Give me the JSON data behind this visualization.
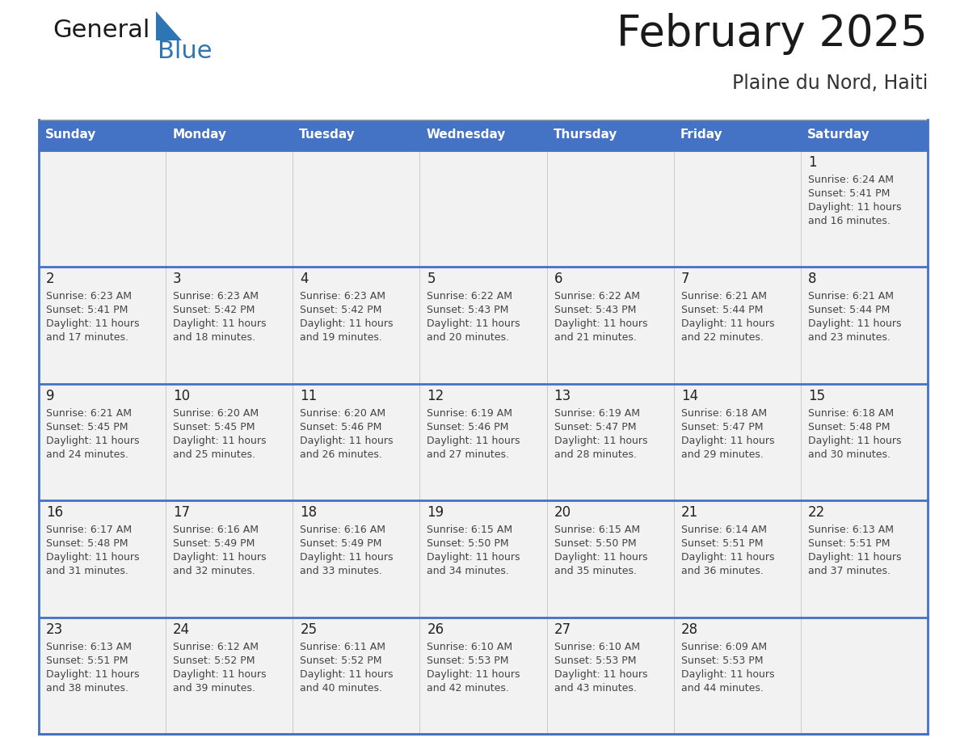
{
  "title": "February 2025",
  "subtitle": "Plaine du Nord, Haiti",
  "days_of_week": [
    "Sunday",
    "Monday",
    "Tuesday",
    "Wednesday",
    "Thursday",
    "Friday",
    "Saturday"
  ],
  "header_bg": "#4472C4",
  "header_text": "#FFFFFF",
  "cell_bg": "#F2F2F2",
  "border_color": "#4472C4",
  "cell_border_color": "#AAAAAA",
  "day_number_color": "#222222",
  "text_color": "#444444",
  "title_color": "#1a1a1a",
  "logo_dark_color": "#1a1a1a",
  "logo_blue_color": "#2E75B6",
  "calendar_data": [
    [
      null,
      null,
      null,
      null,
      null,
      null,
      {
        "day": 1,
        "sunrise": "6:24 AM",
        "sunset": "5:41 PM",
        "daylight": "11 hours",
        "daylight2": "and 16 minutes."
      }
    ],
    [
      {
        "day": 2,
        "sunrise": "6:23 AM",
        "sunset": "5:41 PM",
        "daylight": "11 hours",
        "daylight2": "and 17 minutes."
      },
      {
        "day": 3,
        "sunrise": "6:23 AM",
        "sunset": "5:42 PM",
        "daylight": "11 hours",
        "daylight2": "and 18 minutes."
      },
      {
        "day": 4,
        "sunrise": "6:23 AM",
        "sunset": "5:42 PM",
        "daylight": "11 hours",
        "daylight2": "and 19 minutes."
      },
      {
        "day": 5,
        "sunrise": "6:22 AM",
        "sunset": "5:43 PM",
        "daylight": "11 hours",
        "daylight2": "and 20 minutes."
      },
      {
        "day": 6,
        "sunrise": "6:22 AM",
        "sunset": "5:43 PM",
        "daylight": "11 hours",
        "daylight2": "and 21 minutes."
      },
      {
        "day": 7,
        "sunrise": "6:21 AM",
        "sunset": "5:44 PM",
        "daylight": "11 hours",
        "daylight2": "and 22 minutes."
      },
      {
        "day": 8,
        "sunrise": "6:21 AM",
        "sunset": "5:44 PM",
        "daylight": "11 hours",
        "daylight2": "and 23 minutes."
      }
    ],
    [
      {
        "day": 9,
        "sunrise": "6:21 AM",
        "sunset": "5:45 PM",
        "daylight": "11 hours",
        "daylight2": "and 24 minutes."
      },
      {
        "day": 10,
        "sunrise": "6:20 AM",
        "sunset": "5:45 PM",
        "daylight": "11 hours",
        "daylight2": "and 25 minutes."
      },
      {
        "day": 11,
        "sunrise": "6:20 AM",
        "sunset": "5:46 PM",
        "daylight": "11 hours",
        "daylight2": "and 26 minutes."
      },
      {
        "day": 12,
        "sunrise": "6:19 AM",
        "sunset": "5:46 PM",
        "daylight": "11 hours",
        "daylight2": "and 27 minutes."
      },
      {
        "day": 13,
        "sunrise": "6:19 AM",
        "sunset": "5:47 PM",
        "daylight": "11 hours",
        "daylight2": "and 28 minutes."
      },
      {
        "day": 14,
        "sunrise": "6:18 AM",
        "sunset": "5:47 PM",
        "daylight": "11 hours",
        "daylight2": "and 29 minutes."
      },
      {
        "day": 15,
        "sunrise": "6:18 AM",
        "sunset": "5:48 PM",
        "daylight": "11 hours",
        "daylight2": "and 30 minutes."
      }
    ],
    [
      {
        "day": 16,
        "sunrise": "6:17 AM",
        "sunset": "5:48 PM",
        "daylight": "11 hours",
        "daylight2": "and 31 minutes."
      },
      {
        "day": 17,
        "sunrise": "6:16 AM",
        "sunset": "5:49 PM",
        "daylight": "11 hours",
        "daylight2": "and 32 minutes."
      },
      {
        "day": 18,
        "sunrise": "6:16 AM",
        "sunset": "5:49 PM",
        "daylight": "11 hours",
        "daylight2": "and 33 minutes."
      },
      {
        "day": 19,
        "sunrise": "6:15 AM",
        "sunset": "5:50 PM",
        "daylight": "11 hours",
        "daylight2": "and 34 minutes."
      },
      {
        "day": 20,
        "sunrise": "6:15 AM",
        "sunset": "5:50 PM",
        "daylight": "11 hours",
        "daylight2": "and 35 minutes."
      },
      {
        "day": 21,
        "sunrise": "6:14 AM",
        "sunset": "5:51 PM",
        "daylight": "11 hours",
        "daylight2": "and 36 minutes."
      },
      {
        "day": 22,
        "sunrise": "6:13 AM",
        "sunset": "5:51 PM",
        "daylight": "11 hours",
        "daylight2": "and 37 minutes."
      }
    ],
    [
      {
        "day": 23,
        "sunrise": "6:13 AM",
        "sunset": "5:51 PM",
        "daylight": "11 hours",
        "daylight2": "and 38 minutes."
      },
      {
        "day": 24,
        "sunrise": "6:12 AM",
        "sunset": "5:52 PM",
        "daylight": "11 hours",
        "daylight2": "and 39 minutes."
      },
      {
        "day": 25,
        "sunrise": "6:11 AM",
        "sunset": "5:52 PM",
        "daylight": "11 hours",
        "daylight2": "and 40 minutes."
      },
      {
        "day": 26,
        "sunrise": "6:10 AM",
        "sunset": "5:53 PM",
        "daylight": "11 hours",
        "daylight2": "and 42 minutes."
      },
      {
        "day": 27,
        "sunrise": "6:10 AM",
        "sunset": "5:53 PM",
        "daylight": "11 hours",
        "daylight2": "and 43 minutes."
      },
      {
        "day": 28,
        "sunrise": "6:09 AM",
        "sunset": "5:53 PM",
        "daylight": "11 hours",
        "daylight2": "and 44 minutes."
      },
      null
    ]
  ]
}
